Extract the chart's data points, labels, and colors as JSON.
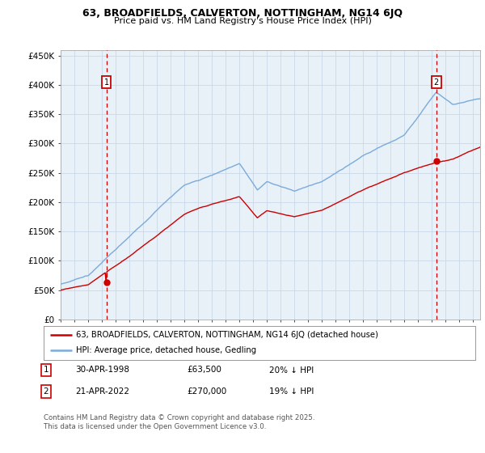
{
  "title": "63, BROADFIELDS, CALVERTON, NOTTINGHAM, NG14 6JQ",
  "subtitle": "Price paid vs. HM Land Registry's House Price Index (HPI)",
  "ylim": [
    0,
    460000
  ],
  "yticks": [
    0,
    50000,
    100000,
    150000,
    200000,
    250000,
    300000,
    350000,
    400000,
    450000
  ],
  "ytick_labels": [
    "£0",
    "£50K",
    "£100K",
    "£150K",
    "£200K",
    "£250K",
    "£300K",
    "£350K",
    "£400K",
    "£450K"
  ],
  "hpi_color": "#7aabdb",
  "price_color": "#cc0000",
  "grid_color": "#c8d8e8",
  "bg_color": "#ddeeff",
  "plot_bg": "#e8f0f8",
  "background_color": "#ffffff",
  "legend_label1": "63, BROADFIELDS, CALVERTON, NOTTINGHAM, NG14 6JQ (detached house)",
  "legend_label2": "HPI: Average price, detached house, Gedling",
  "note1_label": "1",
  "note1_date": "30-APR-1998",
  "note1_price": "£63,500",
  "note1_hpi": "20% ↓ HPI",
  "note2_label": "2",
  "note2_date": "21-APR-2022",
  "note2_price": "£270,000",
  "note2_hpi": "19% ↓ HPI",
  "footer": "Contains HM Land Registry data © Crown copyright and database right 2025.\nThis data is licensed under the Open Government Licence v3.0.",
  "sale1_year": 1998.33,
  "sale1_price": 63500,
  "sale2_year": 2022.31,
  "sale2_price": 270000,
  "vline1_year": 1998.33,
  "vline2_year": 2022.31,
  "marker_color": "#cc0000",
  "vline_color": "#cc0000"
}
